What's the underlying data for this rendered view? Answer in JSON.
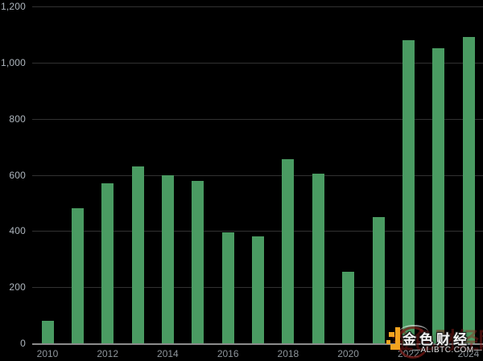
{
  "chart_data": {
    "type": "bar",
    "categories": [
      "2010",
      "2011",
      "2012",
      "2013",
      "2014",
      "2015",
      "2016",
      "2017",
      "2018",
      "2019",
      "2020",
      "2021",
      "2022",
      "2023",
      "2024"
    ],
    "values": [
      80,
      480,
      570,
      630,
      600,
      580,
      395,
      380,
      655,
      605,
      255,
      450,
      1080,
      1050,
      1090
    ],
    "title": "",
    "xlabel": "",
    "ylabel": "",
    "ylim": [
      0,
      1200
    ],
    "yticks": [
      0,
      200,
      400,
      600,
      800,
      1000,
      1200
    ],
    "ytick_labels": [
      "0",
      "200",
      "400",
      "600",
      "800",
      "1,000",
      "1,200"
    ],
    "xtick_labels": [
      "2010",
      "2012",
      "2014",
      "2016",
      "2018",
      "2020",
      "2022",
      "2024"
    ],
    "grid": true,
    "legend": "none",
    "bar_color": "#4a9b62",
    "background_color": "#000000",
    "gridline_color": "#323232",
    "axis_color": "#8c8c8c",
    "ytick_color": "#adb5bd",
    "xtick_color": "#8f969c"
  },
  "watermark": {
    "brand_cn": "金色财经",
    "site_line": "—ALIBTC.COM—",
    "faint_text": "金色财经网",
    "logo_orange": "#f2a31f"
  }
}
